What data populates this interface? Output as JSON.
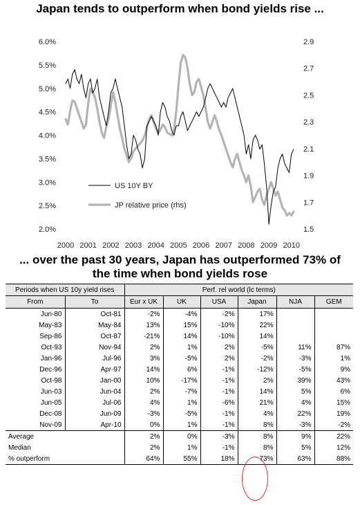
{
  "titles": {
    "top": "Japan tends to outperform when bond yields rise ...",
    "bottom_line1": "... over the past 30 years, Japan has outperformed 73% of",
    "bottom_line2": "the time when bond yields rose"
  },
  "chart_data": {
    "type": "line",
    "title": "Japan tends to outperform when bond yields rise ...",
    "x_ticks": [
      "2000",
      "2001",
      "2002",
      "2003",
      "2004",
      "2005",
      "2006",
      "2007",
      "2008",
      "2009",
      "2010"
    ],
    "xlim": [
      2000,
      2010.1
    ],
    "y_left": {
      "ticks": [
        "2.0%",
        "2.5%",
        "3.0%",
        "3.5%",
        "4.0%",
        "4.5%",
        "5.0%",
        "5.5%",
        "6.0%"
      ],
      "ylim": [
        2.0,
        6.0
      ]
    },
    "y_right": {
      "ticks": [
        "1.5",
        "1.7",
        "1.9",
        "2.1",
        "2.3",
        "2.5",
        "2.7",
        "2.9"
      ],
      "ylim": [
        1.5,
        2.9
      ]
    },
    "grid": false,
    "legend": {
      "placement": "lower-left"
    },
    "series": [
      {
        "name": "US 10Y BY",
        "axis": "left",
        "color": "#000000",
        "x": [
          2000.0,
          2000.1,
          2000.2,
          2000.3,
          2000.4,
          2000.5,
          2000.6,
          2000.7,
          2000.8,
          2000.9,
          2001.0,
          2001.1,
          2001.2,
          2001.3,
          2001.4,
          2001.5,
          2001.6,
          2001.7,
          2001.8,
          2001.9,
          2002.0,
          2002.1,
          2002.2,
          2002.3,
          2002.4,
          2002.5,
          2002.6,
          2002.7,
          2002.8,
          2002.9,
          2003.0,
          2003.1,
          2003.2,
          2003.3,
          2003.4,
          2003.5,
          2003.6,
          2003.7,
          2003.8,
          2003.9,
          2004.0,
          2004.1,
          2004.2,
          2004.3,
          2004.4,
          2004.5,
          2004.6,
          2004.7,
          2004.8,
          2004.9,
          2005.0,
          2005.1,
          2005.2,
          2005.3,
          2005.4,
          2005.5,
          2005.6,
          2005.7,
          2005.8,
          2005.9,
          2006.0,
          2006.1,
          2006.2,
          2006.3,
          2006.4,
          2006.5,
          2006.6,
          2006.7,
          2006.8,
          2006.9,
          2007.0,
          2007.1,
          2007.2,
          2007.3,
          2007.4,
          2007.5,
          2007.6,
          2007.7,
          2007.8,
          2007.9,
          2008.0,
          2008.1,
          2008.2,
          2008.3,
          2008.4,
          2008.5,
          2008.6,
          2008.7,
          2008.8,
          2008.9,
          2009.0,
          2009.1,
          2009.2,
          2009.3,
          2009.4,
          2009.5,
          2009.6,
          2009.7,
          2009.8,
          2009.9,
          2010.0,
          2010.1
        ],
        "values": [
          5.1,
          5.2,
          5.0,
          5.3,
          5.4,
          5.2,
          5.1,
          5.3,
          5.0,
          4.8,
          5.1,
          5.2,
          4.9,
          5.0,
          5.2,
          4.8,
          4.6,
          4.4,
          4.2,
          4.5,
          4.9,
          5.0,
          5.2,
          5.0,
          4.8,
          4.6,
          4.2,
          3.8,
          3.5,
          3.6,
          4.0,
          3.9,
          3.7,
          3.6,
          3.3,
          3.5,
          4.2,
          4.3,
          4.4,
          4.3,
          4.2,
          4.0,
          4.5,
          4.7,
          4.6,
          4.4,
          4.3,
          4.1,
          4.0,
          4.2,
          4.2,
          4.4,
          4.5,
          4.3,
          4.1,
          4.2,
          4.3,
          4.4,
          4.5,
          4.4,
          4.5,
          4.6,
          4.8,
          5.0,
          5.1,
          5.0,
          4.9,
          4.8,
          4.7,
          4.6,
          4.7,
          4.6,
          4.8,
          4.9,
          5.0,
          4.8,
          4.6,
          4.4,
          4.2,
          4.0,
          3.6,
          3.8,
          3.5,
          3.9,
          4.0,
          3.9,
          3.7,
          3.8,
          3.4,
          2.9,
          2.1,
          2.5,
          2.8,
          2.9,
          3.3,
          3.5,
          3.6,
          3.4,
          3.3,
          3.2,
          3.6,
          3.7
        ]
      },
      {
        "name": "JP relative price (rhs)",
        "axis": "right",
        "color": "#b3b3b3",
        "x": [
          2000.0,
          2000.1,
          2000.2,
          2000.3,
          2000.4,
          2000.5,
          2000.6,
          2000.7,
          2000.8,
          2000.9,
          2001.0,
          2001.1,
          2001.2,
          2001.3,
          2001.4,
          2001.5,
          2001.6,
          2001.7,
          2001.8,
          2001.9,
          2002.0,
          2002.1,
          2002.2,
          2002.3,
          2002.4,
          2002.5,
          2002.6,
          2002.7,
          2002.8,
          2002.9,
          2003.0,
          2003.1,
          2003.2,
          2003.3,
          2003.4,
          2003.5,
          2003.6,
          2003.7,
          2003.8,
          2003.9,
          2004.0,
          2004.1,
          2004.2,
          2004.3,
          2004.4,
          2004.5,
          2004.6,
          2004.7,
          2004.8,
          2004.9,
          2005.0,
          2005.1,
          2005.2,
          2005.3,
          2005.4,
          2005.5,
          2005.6,
          2005.7,
          2005.8,
          2005.9,
          2006.0,
          2006.1,
          2006.2,
          2006.3,
          2006.4,
          2006.5,
          2006.6,
          2006.7,
          2006.8,
          2006.9,
          2007.0,
          2007.1,
          2007.2,
          2007.3,
          2007.4,
          2007.5,
          2007.6,
          2007.7,
          2007.8,
          2007.9,
          2008.0,
          2008.1,
          2008.2,
          2008.3,
          2008.4,
          2008.5,
          2008.6,
          2008.7,
          2008.8,
          2008.9,
          2009.0,
          2009.1,
          2009.2,
          2009.3,
          2009.4,
          2009.5,
          2009.6,
          2009.7,
          2009.8,
          2009.9,
          2010.0,
          2010.1
        ],
        "values": [
          2.32,
          2.28,
          2.38,
          2.46,
          2.45,
          2.4,
          2.35,
          2.3,
          2.25,
          2.28,
          2.44,
          2.55,
          2.52,
          2.48,
          2.4,
          2.3,
          2.22,
          2.18,
          2.26,
          2.32,
          2.42,
          2.52,
          2.45,
          2.35,
          2.25,
          2.18,
          2.1,
          2.05,
          2.0,
          2.03,
          2.08,
          2.1,
          2.12,
          2.14,
          2.16,
          2.2,
          2.26,
          2.32,
          2.35,
          2.3,
          2.25,
          2.22,
          2.24,
          2.28,
          2.26,
          2.22,
          2.21,
          2.2,
          2.24,
          2.38,
          2.58,
          2.74,
          2.8,
          2.78,
          2.7,
          2.58,
          2.5,
          2.52,
          2.6,
          2.62,
          2.56,
          2.5,
          2.4,
          2.3,
          2.25,
          2.3,
          2.35,
          2.3,
          2.24,
          2.2,
          2.15,
          2.1,
          2.05,
          2.0,
          1.96,
          2.02,
          2.06,
          2.0,
          1.94,
          1.9,
          1.85,
          1.9,
          1.82,
          1.7,
          1.74,
          1.78,
          1.8,
          1.72,
          1.68,
          1.75,
          1.8,
          1.85,
          1.8,
          1.75,
          1.78,
          1.72,
          1.66,
          1.64,
          1.6,
          1.62,
          1.6,
          1.63
        ]
      }
    ]
  },
  "table": {
    "group_header": "Periods when US 10y yield rises",
    "perf_header": "Perf. rel world (lc terms)",
    "columns": [
      "From",
      "To",
      "Eur x UK",
      "UK",
      "USA",
      "Japan",
      "NJA",
      "GEM"
    ],
    "rows": [
      [
        "Jun-80",
        "Oct-81",
        "-2%",
        "-4%",
        "-2%",
        "17%",
        "",
        ""
      ],
      [
        "May-83",
        "May-84",
        "13%",
        "15%",
        "-10%",
        "22%",
        "",
        ""
      ],
      [
        "Sep-86",
        "Oct-87",
        "-21%",
        "14%",
        "-10%",
        "14%",
        "",
        ""
      ],
      [
        "Oct-93",
        "Nov-94",
        "2%",
        "1%",
        "2%",
        "-5%",
        "11%",
        "87%"
      ],
      [
        "Jan-96",
        "Jul-96",
        "3%",
        "-5%",
        "2%",
        "-2%",
        "-3%",
        "1%"
      ],
      [
        "Dec-96",
        "Apr-97",
        "14%",
        "6%",
        "-1%",
        "-12%",
        "-5%",
        "9%"
      ],
      [
        "Oct-98",
        "Jan-00",
        "10%",
        "-17%",
        "-1%",
        "2%",
        "39%",
        "43%"
      ],
      [
        "Jun-03",
        "Jun-04",
        "2%",
        "-7%",
        "-1%",
        "14%",
        "5%",
        "6%"
      ],
      [
        "Jun-05",
        "Jul-06",
        "4%",
        "1%",
        "-6%",
        "21%",
        "4%",
        "15%"
      ],
      [
        "Dec-08",
        "Jun-09",
        "-3%",
        "-5%",
        "-1%",
        "4%",
        "22%",
        "19%"
      ],
      [
        "Nov-09",
        "Apr-10",
        "0%",
        "1%",
        "-1%",
        "8%",
        "-3%",
        "-2%"
      ]
    ],
    "summary": [
      {
        "label": "Average",
        "values": [
          "2%",
          "0%",
          "-3%",
          "8%",
          "9%",
          "22%"
        ]
      },
      {
        "label": "Median",
        "values": [
          "2%",
          "1%",
          "-1%",
          "8%",
          "5%",
          "12%"
        ]
      },
      {
        "label": "% outperform",
        "values": [
          "64%",
          "55%",
          "18%",
          "73%",
          "63%",
          "88%"
        ]
      }
    ]
  },
  "colors": {
    "highlight_oval": "#e23030",
    "header_bg": "#e6e6e6"
  }
}
